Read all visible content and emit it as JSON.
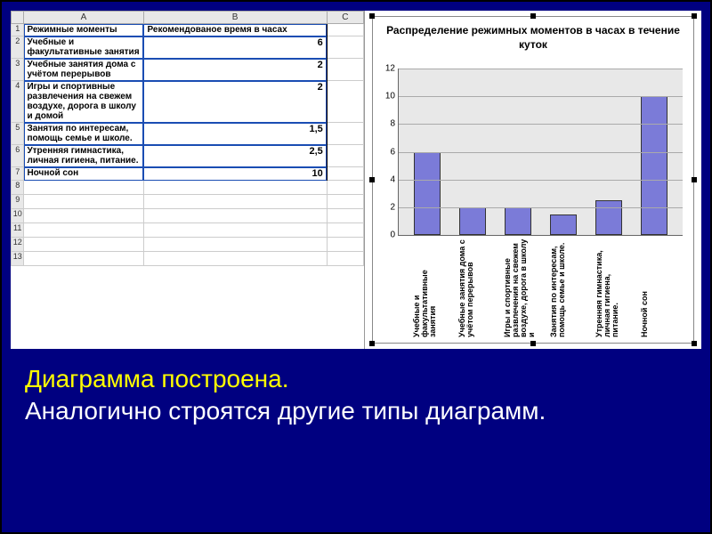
{
  "columns": [
    "A",
    "B",
    "C"
  ],
  "table": {
    "header": {
      "a": "Режимные моменты",
      "b": "Рекомендованое время в часах"
    },
    "rows": [
      {
        "num": 2,
        "label": "Учебные и факультативные занятия",
        "value": 6
      },
      {
        "num": 3,
        "label": "Учебные занятия дома с учётом перерывов",
        "value": 2
      },
      {
        "num": 4,
        "label": "Игры и спортивные развлечения на свежем воздухе, дорога в школу и домой",
        "value": 2
      },
      {
        "num": 5,
        "label": "Занятия по интересам, помощь семье и школе.",
        "value": "1,5"
      },
      {
        "num": 6,
        "label": "Утренняя гимнастика, личная гигиена, питание.",
        "value": "2,5"
      },
      {
        "num": 7,
        "label": "Ночной сон",
        "value": 10
      }
    ],
    "empty_rows": [
      8,
      9,
      10,
      11,
      12,
      13
    ]
  },
  "chart": {
    "type": "bar",
    "title": "Распределение режимных моментов в часах в течение куток",
    "ymax": 12,
    "ytick_step": 2,
    "bar_color": "#7b7bd8",
    "plot_bg": "#e8e8e8",
    "grid_color": "#aaaaaa",
    "categories": [
      "Учебные и факультативные занятия",
      "Учебные занятия дома с учётом перерывов",
      "Игры и спортивные развлечения на свежем воздухе, дорога в школу и",
      "Занятия по интересам, помощь семье и школе.",
      "Утренняя гимнастика, личная гигиена, питание.",
      "Ночной сон"
    ],
    "values": [
      6,
      2,
      2,
      1.5,
      2.5,
      10
    ]
  },
  "caption": {
    "line1": "Диаграмма построена.",
    "line2": "Аналогично строятся другие типы диаграмм."
  },
  "colors": {
    "slide_bg": "#000080",
    "accent_yellow": "#ffff00",
    "text_white": "#ffffff"
  }
}
